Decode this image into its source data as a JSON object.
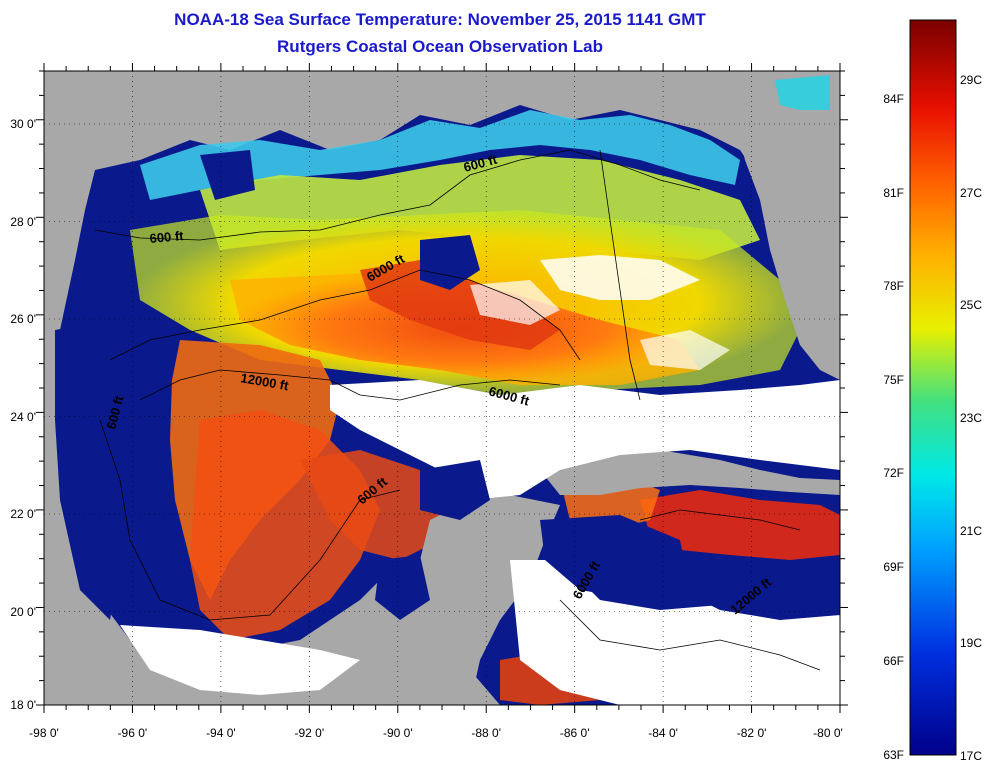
{
  "title": "NOAA-18 Sea Surface Temperature:  November 25, 2015 1141 GMT",
  "subtitle": "Rutgers Coastal Ocean Observation Lab",
  "map": {
    "lon_labels": [
      "-98 0'",
      "-96 0'",
      "-94 0'",
      "-92 0'",
      "-90 0'",
      "-88 0'",
      "-86 0'",
      "-84 0'",
      "-82 0'",
      "-80 0'"
    ],
    "lat_labels": [
      "30 0'",
      "28 0'",
      "26 0'",
      "24 0'",
      "22 0'",
      "20 0'",
      "18 0'"
    ],
    "lon_range": [
      -98,
      -80
    ],
    "lat_range": [
      18,
      31
    ],
    "contour_labels": [
      "600 ft",
      "600 ft",
      "6000 ft",
      "12000 ft",
      "6000 ft",
      "600 ft",
      "600 ft",
      "6000 ft",
      "12000 ft"
    ],
    "colors": {
      "land": "#a8a8a8",
      "cloud": "#ffffff",
      "cold": "#0a0a80",
      "warm": "#e05010"
    }
  },
  "colorbar": {
    "fahrenheit_labels": [
      "84F",
      "81F",
      "78F",
      "75F",
      "72F",
      "69F",
      "66F",
      "63F"
    ],
    "celsius_labels": [
      "29C",
      "27C",
      "25C",
      "23C",
      "21C",
      "19C",
      "17C"
    ],
    "range_c": [
      17,
      30
    ]
  }
}
